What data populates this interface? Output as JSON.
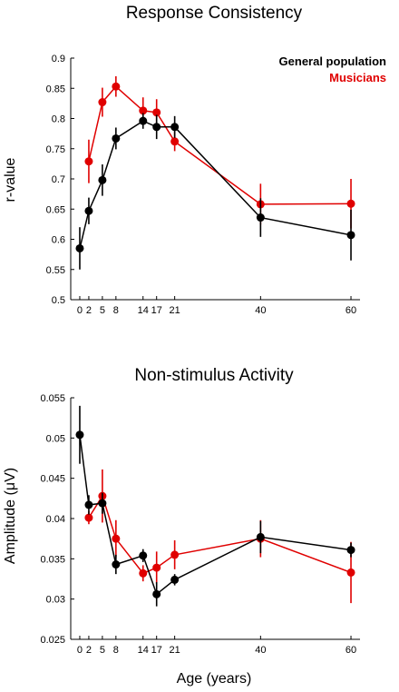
{
  "chart_data": [
    {
      "type": "line",
      "title": "Response Consistency",
      "xlabel": "",
      "ylabel": "r-value",
      "xlim": [
        -2,
        62
      ],
      "ylim": [
        0.5,
        0.9
      ],
      "xticks": [
        0,
        2,
        5,
        8,
        14,
        17,
        21,
        40,
        60
      ],
      "yticks": [
        "0.5",
        "0.55",
        "0.6",
        "0.65",
        "0.7",
        "0.75",
        "0.8",
        "0.85",
        "0.9"
      ],
      "legend": {
        "position": "top-right"
      },
      "grid": false,
      "series": [
        {
          "name": "General population",
          "color": "#000000",
          "x": [
            0,
            2,
            5,
            8,
            14,
            17,
            21,
            40,
            60
          ],
          "y": [
            0.585,
            0.647,
            0.698,
            0.767,
            0.796,
            0.786,
            0.786,
            0.636,
            0.607
          ],
          "err": [
            0.035,
            0.022,
            0.026,
            0.018,
            0.013,
            0.02,
            0.018,
            0.032,
            0.042
          ]
        },
        {
          "name": "Musicians",
          "color": "#e00000",
          "x": [
            2,
            5,
            8,
            14,
            17,
            21,
            40,
            60
          ],
          "y": [
            0.729,
            0.827,
            0.853,
            0.813,
            0.81,
            0.762,
            0.658,
            0.659
          ],
          "err": [
            0.036,
            0.024,
            0.017,
            0.022,
            0.022,
            0.016,
            0.034,
            0.041
          ]
        }
      ]
    },
    {
      "type": "line",
      "title": "Non-stimulus Activity",
      "xlabel": "Age (years)",
      "ylabel": "Amplitude (μV)",
      "xlim": [
        -2,
        62
      ],
      "ylim": [
        0.025,
        0.055
      ],
      "xticks": [
        0,
        2,
        5,
        8,
        14,
        17,
        21,
        40,
        60
      ],
      "yticks": [
        "0.025",
        "0.03",
        "0.035",
        "0.04",
        "0.045",
        "0.05",
        "0.055"
      ],
      "grid": false,
      "series": [
        {
          "name": "",
          "color": "#000000",
          "x": [
            0,
            2,
            5,
            8,
            14,
            17,
            21,
            40,
            60
          ],
          "y": [
            0.0504,
            0.0417,
            0.0419,
            0.0343,
            0.0354,
            0.0306,
            0.0324,
            0.0377,
            0.0361
          ],
          "err": [
            0.0036,
            0.0012,
            0.0013,
            0.0012,
            0.0008,
            0.0015,
            0.0007,
            0.002,
            0.0009
          ]
        },
        {
          "name": "",
          "color": "#e00000",
          "x": [
            2,
            5,
            8,
            14,
            17,
            21,
            40,
            60
          ],
          "y": [
            0.0401,
            0.0428,
            0.0375,
            0.0332,
            0.0339,
            0.0355,
            0.0375,
            0.0333
          ],
          "err": [
            0.0008,
            0.0033,
            0.0023,
            0.001,
            0.002,
            0.0018,
            0.0023,
            0.0038
          ]
        }
      ]
    }
  ]
}
